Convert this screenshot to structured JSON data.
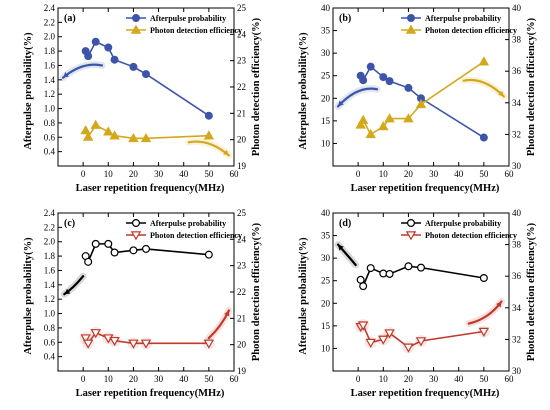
{
  "chart_data": [
    {
      "type": "line",
      "panel_label": "(a)",
      "xlabel": "Laser  repetition frequency(MHz)",
      "ylabel_left": "Afterpulse probability(%)",
      "ylabel_right": "Photon detection efficiency(%)",
      "xlim": [
        -10,
        60
      ],
      "xticks": [
        "0",
        "10",
        "20",
        "30",
        "40",
        "50",
        "60"
      ],
      "ylim_left": [
        0.2,
        2.4
      ],
      "yticks_left": [
        "0.4",
        "0.6",
        "0.8",
        "1.0",
        "1.2",
        "1.4",
        "1.6",
        "1.8",
        "2.0",
        "2.2",
        "2.4"
      ],
      "ylim_right": [
        19,
        25
      ],
      "yticks_right": [
        "19",
        "20",
        "21",
        "22",
        "23",
        "24",
        "25"
      ],
      "marker_fill": "filled",
      "series": [
        {
          "name": "Afterpulse probability",
          "axis": "left",
          "color": "#3d55a8",
          "marker": "circle",
          "x": [
            1,
            2,
            5,
            10,
            12.5,
            20,
            25,
            50
          ],
          "y": [
            1.8,
            1.73,
            1.93,
            1.85,
            1.68,
            1.58,
            1.48,
            0.9
          ]
        },
        {
          "name": "Photon detection efficiency",
          "axis": "right",
          "color": "#d4a81c",
          "marker": "triangle-up",
          "x": [
            1,
            2,
            5,
            10,
            12.5,
            20,
            25,
            50
          ],
          "y": [
            20.35,
            20.1,
            20.55,
            20.3,
            20.15,
            20.05,
            20.05,
            20.15
          ]
        }
      ],
      "arrows": [
        {
          "color": "#3d55a8",
          "path": [
            [
              7.5,
              1.6
            ],
            [
              -8,
              1.43
            ]
          ],
          "head": "end"
        },
        {
          "color": "#d4a81c",
          "path": [
            [
              42,
              19.9
            ],
            [
              58,
              19.4
            ]
          ],
          "head": "end"
        }
      ]
    },
    {
      "type": "line",
      "panel_label": "(b)",
      "xlabel": "Laser  repetition frequency(MHz)",
      "ylabel_left": "Afterpulse probability(%)",
      "ylabel_right": "Photon detection efficiency(%)",
      "xlim": [
        -10,
        60
      ],
      "xticks": [
        "0",
        "10",
        "20",
        "30",
        "40",
        "50",
        "60"
      ],
      "ylim_left": [
        5,
        40
      ],
      "yticks_left": [
        "10",
        "15",
        "20",
        "25",
        "30",
        "35",
        "40"
      ],
      "ylim_right": [
        30,
        40
      ],
      "yticks_right": [
        "30",
        "32",
        "34",
        "36",
        "38",
        "40"
      ],
      "marker_fill": "filled",
      "series": [
        {
          "name": "Afterpulse probability",
          "axis": "left",
          "color": "#3d55a8",
          "marker": "circle",
          "x": [
            1,
            2,
            5,
            10,
            12.5,
            20,
            25,
            50
          ],
          "y": [
            25.0,
            24.0,
            27.0,
            24.7,
            23.8,
            22.3,
            20.0,
            11.3
          ]
        },
        {
          "name": "Photon detection efficiency",
          "axis": "right",
          "color": "#d4a81c",
          "marker": "triangle-up",
          "x": [
            1,
            2,
            5,
            10,
            12.5,
            20,
            25,
            50
          ],
          "y": [
            32.6,
            32.9,
            32.0,
            32.5,
            33.0,
            33.0,
            33.9,
            36.6
          ]
        }
      ],
      "arrows": [
        {
          "color": "#3d55a8",
          "path": [
            [
              7.5,
              22.0
            ],
            [
              -8,
              18.2
            ]
          ],
          "head": "end"
        },
        {
          "color": "#d4a81c",
          "path": [
            [
              42,
              35.4
            ],
            [
              58,
              34.4
            ]
          ],
          "head": "end"
        }
      ]
    },
    {
      "type": "line",
      "panel_label": "(c)",
      "xlabel": "Laser  repetition frequency(MHz)",
      "ylabel_left": "Afterpulse probability(%)",
      "ylabel_right": "Photon detection efficiency(%)",
      "xlim": [
        -10,
        60
      ],
      "xticks": [
        "0",
        "10",
        "20",
        "30",
        "40",
        "50",
        "60"
      ],
      "ylim_left": [
        0.2,
        2.4
      ],
      "yticks_left": [
        "0.4",
        "0.6",
        "0.8",
        "1.0",
        "1.2",
        "1.4",
        "1.6",
        "1.8",
        "2.0",
        "2.2",
        "2.4"
      ],
      "ylim_right": [
        19,
        25
      ],
      "yticks_right": [
        "19",
        "20",
        "21",
        "22",
        "23",
        "24",
        "25"
      ],
      "marker_fill": "open",
      "series": [
        {
          "name": "Afterpulse probability",
          "axis": "left",
          "color": "#000000",
          "marker": "circle",
          "x": [
            1,
            2,
            5,
            10,
            12.5,
            20,
            25,
            50
          ],
          "y": [
            1.8,
            1.72,
            1.97,
            1.97,
            1.85,
            1.88,
            1.9,
            1.82
          ]
        },
        {
          "name": "Photon detection efficiency",
          "axis": "right",
          "color": "#c0392b",
          "marker": "triangle-down",
          "x": [
            1,
            2,
            5,
            10,
            12.5,
            20,
            25,
            50
          ],
          "y": [
            20.25,
            20.05,
            20.45,
            20.25,
            20.15,
            20.05,
            20.05,
            20.05
          ]
        }
      ],
      "arrows": [
        {
          "color": "#000000",
          "path": [
            [
              0,
              1.52
            ],
            [
              -4,
              1.35
            ],
            [
              -7.5,
              1.27
            ]
          ],
          "head": "end"
        },
        {
          "color": "#c0392b",
          "path": [
            [
              50,
              20.25
            ],
            [
              55,
              20.7
            ],
            [
              58,
              21.3
            ]
          ],
          "head": "end"
        }
      ]
    },
    {
      "type": "line",
      "panel_label": "(d)",
      "xlabel": "Laser  repetition frequency(MHz)",
      "ylabel_left": "Afterpulse probability(%)",
      "ylabel_right": "Photon detection efficiency(%)",
      "xlim": [
        -10,
        60
      ],
      "xticks": [
        "0",
        "10",
        "20",
        "30",
        "40",
        "50",
        "60"
      ],
      "ylim_left": [
        5,
        40
      ],
      "yticks_left": [
        "10",
        "15",
        "20",
        "25",
        "30",
        "35",
        "40"
      ],
      "ylim_right": [
        30,
        40
      ],
      "yticks_right": [
        "30",
        "32",
        "34",
        "36",
        "38",
        "40"
      ],
      "marker_fill": "open",
      "series": [
        {
          "name": "Afterpulse probability",
          "axis": "left",
          "color": "#000000",
          "marker": "circle",
          "x": [
            1,
            2,
            5,
            10,
            12.5,
            20,
            25,
            50
          ],
          "y": [
            25.2,
            23.8,
            27.8,
            26.6,
            26.5,
            28.2,
            27.9,
            25.6
          ]
        },
        {
          "name": "Photon detection efficiency",
          "axis": "right",
          "color": "#c0392b",
          "marker": "triangle-down",
          "x": [
            1,
            2,
            5,
            10,
            12.5,
            20,
            25,
            50
          ],
          "y": [
            32.8,
            32.9,
            31.8,
            32.0,
            32.4,
            31.5,
            31.9,
            32.5
          ]
        }
      ],
      "arrows": [
        {
          "color": "#000000",
          "path": [
            [
              -1,
              28.5
            ],
            [
              -4,
              30.5
            ],
            [
              -8,
              33.0
            ]
          ],
          "head": "end"
        },
        {
          "color": "#c0392b",
          "path": [
            [
              44,
              33.0
            ],
            [
              52,
              33.3
            ],
            [
              57,
              34.4
            ]
          ],
          "head": "end"
        }
      ]
    }
  ]
}
